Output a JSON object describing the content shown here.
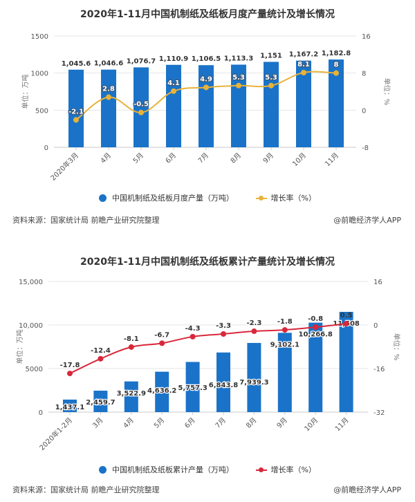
{
  "chart_data": [
    {
      "type": "bar",
      "title": "2020年1-11月中国机制纸及纸板月度产量统计及增长情况",
      "categories": [
        "2020年3月",
        "4月",
        "5月",
        "6月",
        "7月",
        "8月",
        "9月",
        "10月",
        "11月"
      ],
      "series": [
        {
          "name": "中国机制纸及纸板月度产量（万吨）",
          "type": "bar",
          "axis": "left",
          "values": [
            1045.6,
            1046.6,
            1076.7,
            1110.9,
            1106.5,
            1113.3,
            1151,
            1167.2,
            1182.8
          ],
          "labels": [
            "1,045.6",
            "1,046.6",
            "1,076.7",
            "1,110.9",
            "1,106.5",
            "1,113.3",
            "1,151",
            "1,167.2",
            "1,182.8"
          ],
          "color": "#1a73c8"
        },
        {
          "name": "增长率（%）",
          "type": "line",
          "axis": "right",
          "values": [
            -2.1,
            2.8,
            -0.5,
            4.1,
            4.9,
            5.3,
            5.3,
            8.1,
            8
          ],
          "labels": [
            "-2.1",
            "2.8",
            "-0.5",
            "4.1",
            "4.9",
            "5.3",
            "5.3",
            "8.1",
            "8"
          ],
          "color": "#e8b23a"
        }
      ],
      "ylabel": "单位：万吨",
      "y2label": "单位：%",
      "ylim": [
        0,
        1500
      ],
      "yticks": [
        "0",
        "500",
        "1000",
        "1500"
      ],
      "y2lim": [
        -8,
        16
      ],
      "y2ticks": [
        "-8",
        "0",
        "8",
        "16"
      ],
      "legend": "bottom",
      "grid": true
    },
    {
      "type": "bar",
      "title": "2020年1-11月中国机制纸及纸板累计产量统计及增长情况",
      "categories": [
        "2020年1-2月",
        "3月",
        "4月",
        "5月",
        "6月",
        "7月",
        "8月",
        "9月",
        "10月",
        "11月"
      ],
      "series": [
        {
          "name": "中国机制纸及纸板累计产量（万吨）",
          "type": "bar",
          "axis": "left",
          "values": [
            1437.1,
            2459.7,
            3522.9,
            4636.2,
            5757.3,
            6843.8,
            7939.3,
            9102.1,
            10266.8,
            11508
          ],
          "labels": [
            "1,437.1",
            "2,459.7",
            "3,522.9",
            "4,636.2",
            "5,757.3",
            "6,843.8",
            "7,939.3",
            "9,102.1",
            "10,266.8",
            "11,508"
          ],
          "color": "#1a73c8"
        },
        {
          "name": "增长率（%）",
          "type": "line",
          "axis": "right",
          "values": [
            -17.8,
            -12.4,
            -8.1,
            -6.7,
            -4.3,
            -3.3,
            -2.3,
            -1.8,
            -0.8,
            0.5
          ],
          "labels": [
            "-17.8",
            "-12.4",
            "-8.1",
            "-6.7",
            "-4.3",
            "-3.3",
            "-2.3",
            "-1.8",
            "-0.8",
            "0.5"
          ],
          "color": "#d9273a"
        }
      ],
      "ylabel": "单位：万吨",
      "y2label": "单位：%",
      "ylim": [
        0,
        15000
      ],
      "yticks": [
        "0",
        "5000",
        "10,000",
        "15,000"
      ],
      "y2lim": [
        -32,
        16
      ],
      "y2ticks": [
        "-32",
        "-16",
        "0",
        "16"
      ],
      "legend": "bottom",
      "grid": true
    }
  ],
  "footers": [
    {
      "source": "资料来源：国家统计局 前瞻产业研究院整理",
      "brand": "@前瞻经济学人APP"
    },
    {
      "source": "资料来源：国家统计局 前瞻产业研究院整理",
      "brand": "@前瞻经济学人APP"
    }
  ]
}
